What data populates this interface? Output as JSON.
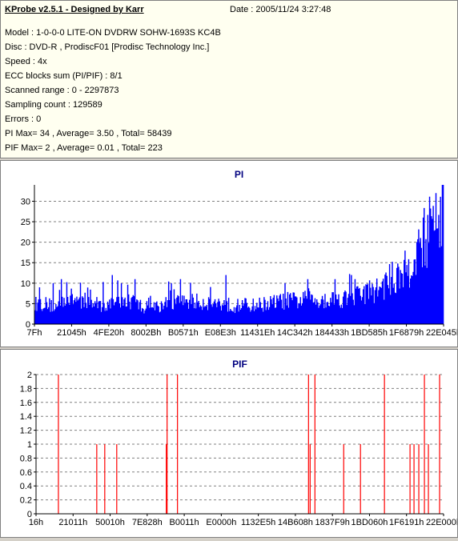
{
  "header": {
    "title": "KProbe v2.5.1 - Designed by Karr",
    "date": "Date : 2005/11/24 3:27:48",
    "lines": [
      "Model : 1-0-0-0 LITE-ON DVDRW SOHW-1693S KC4B",
      "Disc : DVD-R , ProdiscF01 [Prodisc Technology Inc.]",
      "Speed : 4x",
      "ECC blocks sum (PI/PIF) : 8/1",
      "Scanned range : 0 - 2297873",
      "Sampling count : 129589",
      "Errors : 0",
      "PI Max= 34 , Average= 3.50 , Total= 58439",
      "PIF Max= 2 , Average= 0.01 , Total= 223"
    ]
  },
  "colors": {
    "pi": "#0000ff",
    "pif": "#ff0000",
    "title": "#000080",
    "grid": "#808080"
  },
  "chart_data": [
    {
      "type": "bar",
      "title": "PI",
      "ylim": [
        0,
        34
      ],
      "yticks": [
        0,
        5,
        10,
        15,
        20,
        25,
        30
      ],
      "xticks": [
        "7Fh",
        "21045h",
        "4FE20h",
        "8002Bh",
        "B0571h",
        "E08E3h",
        "11431Eh",
        "14C342h",
        "184433h",
        "1BD585h",
        "1F6879h",
        "22E045h"
      ],
      "grid": true,
      "profile": [
        [
          0,
          5
        ],
        [
          10,
          5.2
        ],
        [
          20,
          4.5
        ],
        [
          25,
          4.2
        ],
        [
          28,
          6.2
        ],
        [
          40,
          6.5
        ],
        [
          50,
          6
        ],
        [
          60,
          5.5
        ],
        [
          70,
          5
        ],
        [
          80,
          4.8
        ],
        [
          85,
          4.7
        ],
        [
          90,
          5.5
        ],
        [
          100,
          5.8
        ],
        [
          110,
          5.5
        ],
        [
          120,
          4.2
        ],
        [
          135,
          4.5
        ],
        [
          150,
          5.2
        ],
        [
          160,
          5.5
        ],
        [
          170,
          5.8
        ],
        [
          180,
          5.5
        ],
        [
          190,
          5.6
        ],
        [
          200,
          5.2
        ],
        [
          210,
          5
        ],
        [
          220,
          4.5
        ],
        [
          230,
          4.8
        ],
        [
          240,
          4.7
        ],
        [
          250,
          5
        ],
        [
          260,
          5.3
        ],
        [
          270,
          5.7
        ],
        [
          280,
          5.9
        ],
        [
          290,
          5.9
        ],
        [
          300,
          6
        ],
        [
          310,
          6.1
        ],
        [
          320,
          6.2
        ],
        [
          330,
          6.3
        ],
        [
          340,
          6.5
        ],
        [
          350,
          6.8
        ],
        [
          355,
          7.2
        ],
        [
          360,
          7.5
        ],
        [
          365,
          8
        ],
        [
          370,
          8.3
        ],
        [
          375,
          8.5
        ],
        [
          380,
          9
        ],
        [
          385,
          10
        ],
        [
          390,
          11
        ],
        [
          395,
          11.5
        ],
        [
          400,
          12
        ],
        [
          405,
          13
        ],
        [
          410,
          14
        ],
        [
          415,
          16
        ],
        [
          420,
          18
        ],
        [
          425,
          20
        ],
        [
          430,
          22
        ],
        [
          435,
          24
        ],
        [
          440,
          26
        ],
        [
          445,
          28
        ],
        [
          449,
          33
        ]
      ],
      "peaks": [
        [
          5,
          9
        ],
        [
          20,
          10
        ],
        [
          29,
          11
        ],
        [
          85,
          12
        ],
        [
          95,
          10
        ],
        [
          110,
          11
        ],
        [
          150,
          10
        ],
        [
          160,
          11
        ],
        [
          210,
          12
        ],
        [
          275,
          10
        ],
        [
          300,
          11
        ],
        [
          330,
          11
        ],
        [
          348,
          12
        ],
        [
          400,
          14
        ],
        [
          420,
          20
        ],
        [
          441,
          32
        ],
        [
          448,
          34
        ]
      ]
    },
    {
      "type": "bar",
      "title": "PIF",
      "ylim": [
        0,
        2
      ],
      "yticks": [
        0,
        0.2,
        0.4,
        0.6,
        0.8,
        1,
        1.2,
        1.4,
        1.6,
        1.8,
        2
      ],
      "ytick_labels": [
        "0",
        "0.2",
        "0.4",
        "0.6",
        "0.8",
        "1",
        "1.2",
        "1.4",
        "1.6",
        "1.8",
        "2"
      ],
      "xticks": [
        "16h",
        "21011h",
        "50010h",
        "7E828h",
        "B0011h",
        "E0000h",
        "1132E5h",
        "14B608h",
        "1837F9h",
        "1BD060h",
        "1F6191h",
        "22E000h"
      ],
      "grid": true,
      "spikes": [
        [
          28,
          2
        ],
        [
          76,
          1
        ],
        [
          86,
          1
        ],
        [
          101,
          1
        ],
        [
          163,
          1
        ],
        [
          164,
          2
        ],
        [
          177,
          2
        ],
        [
          341,
          2
        ],
        [
          343,
          1
        ],
        [
          349,
          2
        ],
        [
          385,
          1
        ],
        [
          406,
          1
        ],
        [
          436,
          2
        ],
        [
          468,
          1
        ],
        [
          473,
          1
        ],
        [
          479,
          1
        ],
        [
          486,
          2
        ],
        [
          491,
          1
        ],
        [
          505,
          2
        ]
      ]
    }
  ]
}
